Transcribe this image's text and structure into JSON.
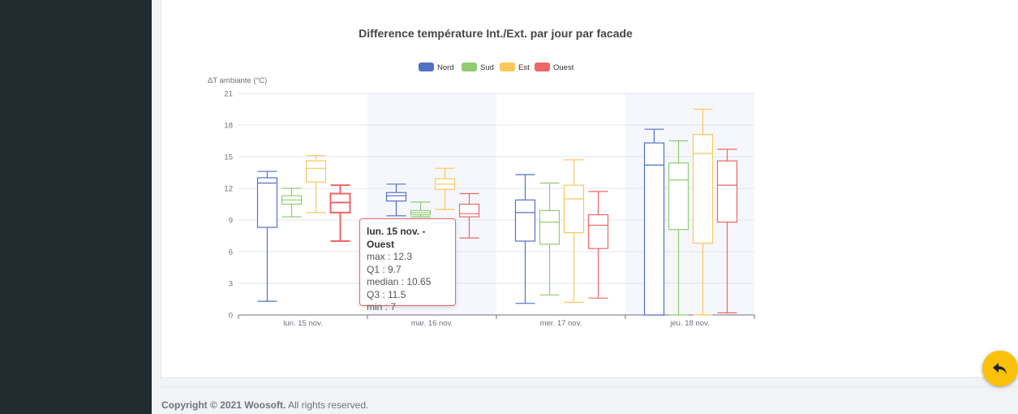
{
  "footer": {
    "copyright_prefix": "Copyright © 2021 Woosoft.",
    "copyright_suffix": "All rights reserved."
  },
  "back_button": {
    "icon": "reply-arrow-icon",
    "color": "#fbc108"
  },
  "chart_data": {
    "type": "boxplot",
    "title": "Difference température Int./Ext. par jour par facade",
    "ylabel": "ΔT ambiante (°C)",
    "xlabel": "",
    "ylim": [
      0,
      21
    ],
    "yticks": [
      0,
      3,
      6,
      9,
      12,
      15,
      18,
      21
    ],
    "grid": true,
    "legend_position": "top-center",
    "categories": [
      "lun. 15 nov.",
      "mar. 16 nov.",
      "mer. 17 nov.",
      "jeu. 18 nov."
    ],
    "series": [
      {
        "name": "Nord",
        "color": "#5470c6",
        "boxes": [
          {
            "min": 1.3,
            "q1": 8.3,
            "median": 12.5,
            "q3": 13.0,
            "max": 13.6
          },
          {
            "min": 9.4,
            "q1": 10.8,
            "median": 11.3,
            "q3": 11.6,
            "max": 12.4
          },
          {
            "min": 1.1,
            "q1": 7.0,
            "median": 9.7,
            "q3": 10.9,
            "max": 13.3
          },
          {
            "min": 0.0,
            "q1": 0.0,
            "median": 14.2,
            "q3": 16.3,
            "max": 17.6
          }
        ]
      },
      {
        "name": "Sud",
        "color": "#91cc75",
        "boxes": [
          {
            "min": 9.3,
            "q1": 10.5,
            "median": 10.9,
            "q3": 11.3,
            "max": 12.0
          },
          {
            "min": 9.3,
            "q1": 9.5,
            "median": 9.7,
            "q3": 9.9,
            "max": 10.7
          },
          {
            "min": 1.9,
            "q1": 6.7,
            "median": 8.8,
            "q3": 9.9,
            "max": 12.5
          },
          {
            "min": 0.0,
            "q1": 8.1,
            "median": 12.8,
            "q3": 14.4,
            "max": 16.5
          }
        ]
      },
      {
        "name": "Est",
        "color": "#fac858",
        "boxes": [
          {
            "min": 9.7,
            "q1": 12.6,
            "median": 13.9,
            "q3": 14.6,
            "max": 15.1
          },
          {
            "min": 10.0,
            "q1": 11.9,
            "median": 12.4,
            "q3": 12.9,
            "max": 13.9
          },
          {
            "min": 1.2,
            "q1": 7.8,
            "median": 11.0,
            "q3": 12.3,
            "max": 14.7
          },
          {
            "min": 0.0,
            "q1": 6.8,
            "median": 15.3,
            "q3": 17.1,
            "max": 19.5
          }
        ]
      },
      {
        "name": "Ouest",
        "color": "#ee6666",
        "boxes": [
          {
            "min": 7.0,
            "q1": 9.7,
            "median": 10.65,
            "q3": 11.5,
            "max": 12.3
          },
          {
            "min": 7.3,
            "q1": 9.3,
            "median": 9.6,
            "q3": 10.5,
            "max": 11.5
          },
          {
            "min": 1.6,
            "q1": 6.3,
            "median": 8.5,
            "q3": 9.5,
            "max": 11.7
          },
          {
            "min": 0.2,
            "q1": 8.8,
            "median": 12.3,
            "q3": 14.6,
            "max": 15.7
          }
        ]
      }
    ],
    "tooltip": {
      "title": "lun. 15 nov. - Ouest",
      "lines": [
        "max : 12.3",
        "Q1 : 9.7",
        "median : 10.65",
        "Q3 : 11.5",
        "min : 7"
      ],
      "border_color": "#ee6666"
    }
  }
}
